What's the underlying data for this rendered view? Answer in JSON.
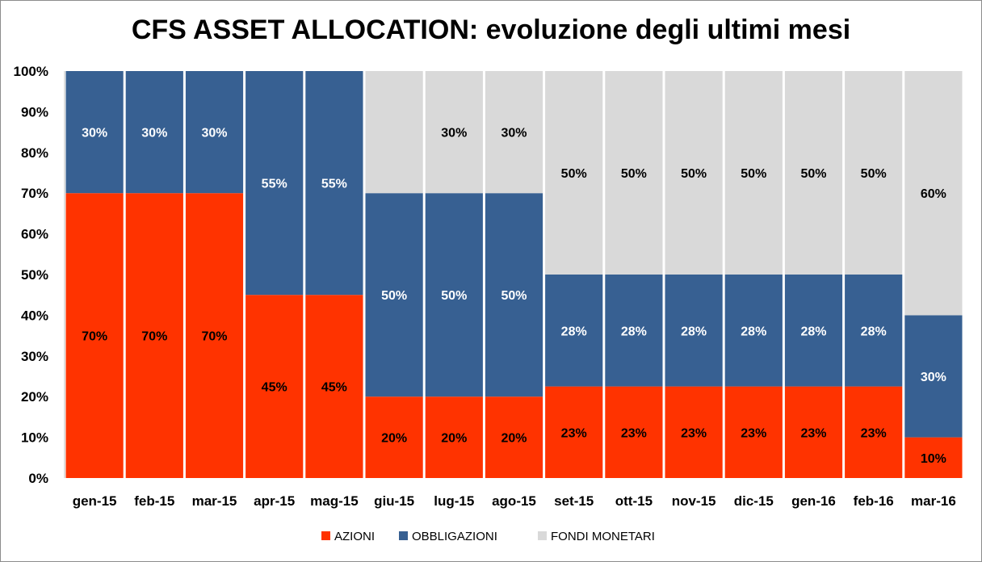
{
  "chart_data": {
    "type": "bar",
    "stacked": true,
    "title": "CFS ASSET ALLOCATION: evoluzione degli ultimi mesi",
    "categories": [
      "gen-15",
      "feb-15",
      "mar-15",
      "apr-15",
      "mag-15",
      "giu-15",
      "lug-15",
      "ago-15",
      "set-15",
      "ott-15",
      "nov-15",
      "dic-15",
      "gen-16",
      "feb-16",
      "mar-16"
    ],
    "series": [
      {
        "name": "AZIONI",
        "color": "#ff3300",
        "label_color": "#000000",
        "values": [
          70,
          70,
          70,
          45,
          45,
          20,
          20,
          20,
          22.5,
          22.5,
          22.5,
          22.5,
          22.5,
          22.5,
          10
        ],
        "labels": [
          "70%",
          "70%",
          "70%",
          "45%",
          "45%",
          "20%",
          "20%",
          "20%",
          "23%",
          "23%",
          "23%",
          "23%",
          "23%",
          "23%",
          "10%"
        ]
      },
      {
        "name": "OBBLIGAZIONI",
        "color": "#376092",
        "label_color": "#ffffff",
        "values": [
          30,
          30,
          30,
          55,
          55,
          50,
          50,
          50,
          27.5,
          27.5,
          27.5,
          27.5,
          27.5,
          27.5,
          30
        ],
        "labels": [
          "30%",
          "30%",
          "30%",
          "55%",
          "55%",
          "50%",
          "50%",
          "50%",
          "28%",
          "28%",
          "28%",
          "28%",
          "28%",
          "28%",
          "30%"
        ]
      },
      {
        "name": "FONDI MONETARI",
        "color": "#d9d9d9",
        "label_color": "#000000",
        "values": [
          0,
          0,
          0,
          0,
          0,
          30,
          30,
          30,
          50,
          50,
          50,
          50,
          50,
          50,
          60
        ],
        "labels": [
          "",
          "",
          "",
          "",
          "",
          "",
          "30%",
          "30%",
          "50%",
          "50%",
          "50%",
          "50%",
          "50%",
          "50%",
          "60%"
        ]
      }
    ],
    "ylim": [
      0,
      100
    ],
    "yticks": [
      "0%",
      "10%",
      "20%",
      "30%",
      "40%",
      "50%",
      "60%",
      "70%",
      "80%",
      "90%",
      "100%"
    ],
    "grid": false,
    "legend_position": "bottom"
  }
}
